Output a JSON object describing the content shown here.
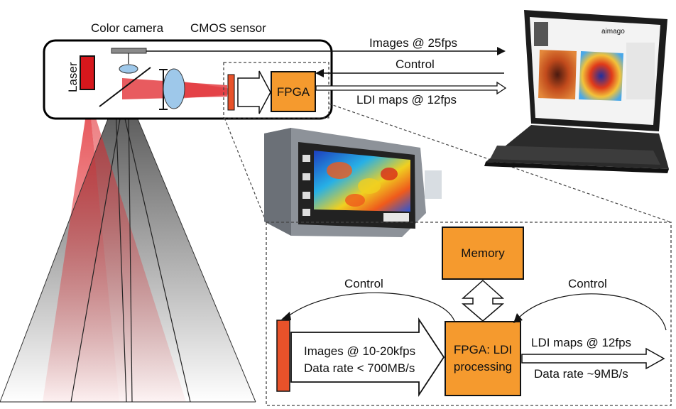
{
  "labels": {
    "color_camera": "Color camera",
    "cmos_sensor": "CMOS sensor",
    "laser": "Laser",
    "fpga_top": "FPGA",
    "images_25fps": "Images @ 25fps",
    "control_top": "Control",
    "ldi_maps_top": "LDI maps @ 12fps",
    "memory": "Memory",
    "control_left": "Control",
    "control_right": "Control",
    "images_10_20": "Images @ 10-20kfps",
    "data_rate_700": "Data rate < 700MB/s",
    "fpga_ldi_line1": "FPGA: LDI",
    "fpga_ldi_line2": "processing",
    "ldi_maps_bottom": "LDI maps @ 12fps",
    "data_rate_9": "Data rate ~9MB/s",
    "laptop_brand": "aimago"
  },
  "colors": {
    "fpga_fill": "#f59a2e",
    "sensor_fill": "#e8522a",
    "laser_fill": "#d6171c",
    "lens_fill": "#9ec8ea",
    "beam_red": "#e0242a",
    "cone_gray": "#6b6b6b"
  },
  "icons": [
    "laptop-icon",
    "imaging-device-icon"
  ]
}
